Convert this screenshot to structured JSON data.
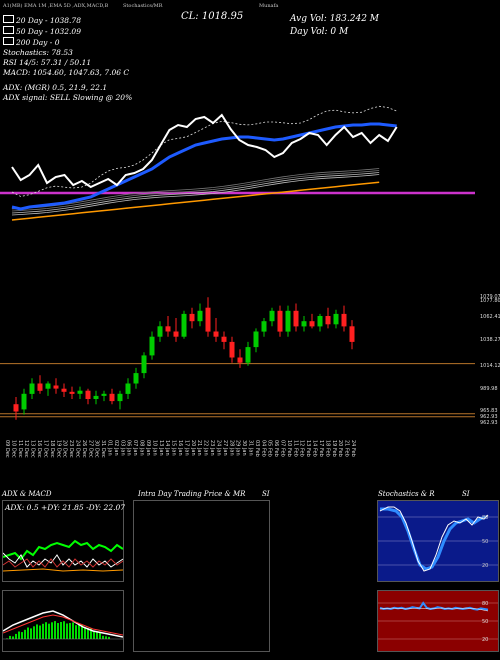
{
  "header": {
    "title_left": "A1(MB)",
    "ema_labels": "EMA 1M ,EMA 5D ,ADX,MACD,B",
    "stoch_label": "Stochastics/MR",
    "cl": "CL: 1018.95",
    "munafa_label": "Munafa",
    "avg_vol": "Avg Vol: 183.242  M",
    "day_vol": "Day Vol: 0  M"
  },
  "legend": {
    "l1": "20  Day - 1038.78",
    "l2": "50  Day - 1032.09",
    "l3": "200  Day - 0",
    "stoch": "Stochastics: 78.53",
    "rsi": "RSI 14/5: 57.31 / 50.11",
    "macd": "MACD: 1054.60, 1047.63, 7.06  C",
    "adx": "ADX:                              (MGR) 0.5,  21.9,  22.1",
    "adx_signal": "ADX  signal: SELL  Slowing @ 20%"
  },
  "colors": {
    "bg": "#000000",
    "up": "#00cc00",
    "down": "#ff2020",
    "ema20": "#ffffff",
    "ema50": "#1e5bff",
    "ema_orange": "#ff9900",
    "magenta": "#cc33cc",
    "hline": "#b8742a",
    "stoch_blue": "#2f8cff",
    "rsi_bg": "#8b0000",
    "macd_green": "#00dd00"
  },
  "price_axis_labels": [
    "1079.07",
    "1077.80",
    "1062.41",
    "1038.27",
    "1014.12",
    "989.98",
    "965.83",
    "962.93",
    "962.93"
  ],
  "date_labels": [
    "09 Dec",
    "10 Dec",
    "11 Dec",
    "12 Dec",
    "13 Dec",
    "16 Dec",
    "17 Dec",
    "18 Dec",
    "19 Dec",
    "20 Dec",
    "23 Dec",
    "24 Dec",
    "26 Dec",
    "27 Dec",
    "30 Dec",
    "31 Dec",
    "01 Jan",
    "02 Jan",
    "03 Jan",
    "06 Jan",
    "07 Jan",
    "08 Jan",
    "09 Jan",
    "10 Jan",
    "13 Jan",
    "14 Jan",
    "15 Jan",
    "16 Jan",
    "17 Jan",
    "20 Jan",
    "21 Jan",
    "22 Jan",
    "23 Jan",
    "24 Jan",
    "27 Jan",
    "28 Jan",
    "29 Jan",
    "30 Jan",
    "31 Jan",
    "03 Feb",
    "04 Feb",
    "05 Feb",
    "06 Feb",
    "07 Feb",
    "10 Feb",
    "11 Feb",
    "12 Feb",
    "13 Feb",
    "14 Feb",
    "17 Feb",
    "18 Feb",
    "19 Feb",
    "20 Feb",
    "21 Feb",
    "24 Feb"
  ],
  "panels": {
    "adx_macd_title": "ADX  & MACD",
    "adx_values": "ADX: 0.5  +DY: 21.85  -DY: 22.07",
    "intraday_title": "Intra  Day Trading Price  & MR",
    "intraday_si": "SI",
    "stoch_title": "Stochastics & R",
    "stoch_si": "SI",
    "stoch_ticks": [
      "80",
      "50",
      "20"
    ],
    "rsi_ticks": [
      "80",
      "50",
      "20"
    ]
  },
  "chart_data": {
    "type": "candlestick",
    "ylim": [
      955,
      1085
    ],
    "candles": [
      {
        "o": 975,
        "h": 982,
        "l": 960,
        "c": 968
      },
      {
        "o": 970,
        "h": 990,
        "l": 965,
        "c": 985
      },
      {
        "o": 985,
        "h": 1000,
        "l": 980,
        "c": 995
      },
      {
        "o": 995,
        "h": 1003,
        "l": 985,
        "c": 988
      },
      {
        "o": 990,
        "h": 997,
        "l": 983,
        "c": 995
      },
      {
        "o": 993,
        "h": 1000,
        "l": 985,
        "c": 990
      },
      {
        "o": 990,
        "h": 995,
        "l": 982,
        "c": 987
      },
      {
        "o": 987,
        "h": 992,
        "l": 980,
        "c": 985
      },
      {
        "o": 985,
        "h": 992,
        "l": 980,
        "c": 988
      },
      {
        "o": 988,
        "h": 990,
        "l": 975,
        "c": 980
      },
      {
        "o": 980,
        "h": 988,
        "l": 975,
        "c": 983
      },
      {
        "o": 983,
        "h": 988,
        "l": 978,
        "c": 985
      },
      {
        "o": 985,
        "h": 990,
        "l": 975,
        "c": 978
      },
      {
        "o": 978,
        "h": 988,
        "l": 970,
        "c": 985
      },
      {
        "o": 985,
        "h": 1000,
        "l": 980,
        "c": 995
      },
      {
        "o": 995,
        "h": 1010,
        "l": 990,
        "c": 1005
      },
      {
        "o": 1005,
        "h": 1025,
        "l": 1000,
        "c": 1022
      },
      {
        "o": 1022,
        "h": 1045,
        "l": 1018,
        "c": 1040
      },
      {
        "o": 1040,
        "h": 1055,
        "l": 1035,
        "c": 1050
      },
      {
        "o": 1050,
        "h": 1060,
        "l": 1040,
        "c": 1045
      },
      {
        "o": 1045,
        "h": 1058,
        "l": 1035,
        "c": 1040
      },
      {
        "o": 1040,
        "h": 1065,
        "l": 1038,
        "c": 1062
      },
      {
        "o": 1062,
        "h": 1068,
        "l": 1048,
        "c": 1055
      },
      {
        "o": 1055,
        "h": 1072,
        "l": 1050,
        "c": 1065
      },
      {
        "o": 1068,
        "h": 1078,
        "l": 1040,
        "c": 1045
      },
      {
        "o": 1045,
        "h": 1058,
        "l": 1035,
        "c": 1040
      },
      {
        "o": 1040,
        "h": 1045,
        "l": 1028,
        "c": 1035
      },
      {
        "o": 1035,
        "h": 1040,
        "l": 1015,
        "c": 1020
      },
      {
        "o": 1020,
        "h": 1028,
        "l": 1010,
        "c": 1015
      },
      {
        "o": 1015,
        "h": 1035,
        "l": 1012,
        "c": 1030
      },
      {
        "o": 1030,
        "h": 1048,
        "l": 1025,
        "c": 1045
      },
      {
        "o": 1045,
        "h": 1058,
        "l": 1040,
        "c": 1055
      },
      {
        "o": 1055,
        "h": 1068,
        "l": 1050,
        "c": 1065
      },
      {
        "o": 1065,
        "h": 1070,
        "l": 1040,
        "c": 1045
      },
      {
        "o": 1045,
        "h": 1070,
        "l": 1040,
        "c": 1065
      },
      {
        "o": 1065,
        "h": 1072,
        "l": 1045,
        "c": 1050
      },
      {
        "o": 1050,
        "h": 1060,
        "l": 1045,
        "c": 1055
      },
      {
        "o": 1055,
        "h": 1062,
        "l": 1048,
        "c": 1050
      },
      {
        "o": 1050,
        "h": 1062,
        "l": 1045,
        "c": 1060
      },
      {
        "o": 1060,
        "h": 1068,
        "l": 1048,
        "c": 1052
      },
      {
        "o": 1052,
        "h": 1066,
        "l": 1048,
        "c": 1062
      },
      {
        "o": 1062,
        "h": 1070,
        "l": 1045,
        "c": 1050
      },
      {
        "o": 1050,
        "h": 1056,
        "l": 1028,
        "c": 1035
      }
    ],
    "price_lines": [
      1014.12,
      965.83,
      962.93
    ],
    "ema20": [
      62,
      75,
      70,
      60,
      78,
      72,
      70,
      80,
      76,
      82,
      78,
      74,
      80,
      70,
      68,
      64,
      55,
      40,
      25,
      20,
      22,
      14,
      12,
      18,
      10,
      24,
      35,
      40,
      42,
      45,
      52,
      48,
      38,
      34,
      28,
      30,
      40,
      30,
      22,
      32,
      28,
      38,
      30,
      36,
      22
    ],
    "ema50": [
      122,
      124,
      122,
      121,
      120,
      119,
      118,
      116,
      114,
      112,
      108,
      104,
      100,
      96,
      92,
      88,
      84,
      78,
      72,
      68,
      64,
      60,
      58,
      56,
      54,
      53,
      52,
      52,
      53,
      54,
      55,
      54,
      52,
      50,
      48,
      46,
      44,
      42,
      41,
      40,
      40,
      39,
      39,
      40,
      41
    ],
    "rsi_line": [
      72,
      70,
      71,
      70,
      72,
      71,
      72,
      70,
      71,
      73,
      72,
      71,
      80,
      72,
      70,
      71,
      73,
      72,
      70,
      71,
      70,
      72,
      71,
      70,
      71,
      72,
      70,
      69,
      71,
      70,
      69
    ]
  }
}
